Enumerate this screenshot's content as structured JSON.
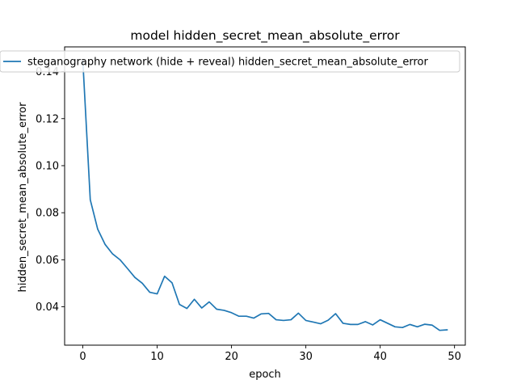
{
  "chart_data": {
    "type": "line",
    "title": "model hidden_secret_mean_absolute_error",
    "xlabel": "epoch",
    "ylabel": "hidden_secret_mean_absolute_error",
    "xlim": [
      -2.45,
      51.45
    ],
    "ylim": [
      0.0237,
      0.1505
    ],
    "xticks": [
      0,
      10,
      20,
      30,
      40,
      50
    ],
    "yticks": [
      0.04,
      0.06,
      0.08,
      0.1,
      0.12,
      0.14
    ],
    "ytick_labels": [
      "0.04",
      "0.06",
      "0.08",
      "0.10",
      "0.12",
      "0.14"
    ],
    "grid": false,
    "legend_position": "top",
    "series": [
      {
        "name": "steganography network (hide + reveal) hidden_secret_mean_absolute_error",
        "color": "#1f77b4",
        "x": [
          0,
          1,
          2,
          3,
          4,
          5,
          6,
          7,
          8,
          9,
          10,
          11,
          12,
          13,
          14,
          15,
          16,
          17,
          18,
          19,
          20,
          21,
          22,
          23,
          24,
          25,
          26,
          27,
          28,
          29,
          30,
          31,
          32,
          33,
          34,
          35,
          36,
          37,
          38,
          39,
          40,
          41,
          42,
          43,
          44,
          45,
          46,
          47,
          48,
          49
        ],
        "y": [
          0.1445,
          0.0855,
          0.073,
          0.0665,
          0.0625,
          0.06,
          0.0563,
          0.0525,
          0.05,
          0.0462,
          0.0455,
          0.053,
          0.0502,
          0.041,
          0.0393,
          0.0432,
          0.0395,
          0.0421,
          0.039,
          0.0385,
          0.0375,
          0.036,
          0.036,
          0.0352,
          0.037,
          0.0372,
          0.0345,
          0.0342,
          0.0345,
          0.0373,
          0.0342,
          0.0335,
          0.0328,
          0.0343,
          0.0371,
          0.033,
          0.0325,
          0.0325,
          0.0337,
          0.0323,
          0.0345,
          0.033,
          0.0315,
          0.0312,
          0.0325,
          0.0315,
          0.0326,
          0.0322,
          0.03,
          0.0302
        ]
      }
    ]
  }
}
